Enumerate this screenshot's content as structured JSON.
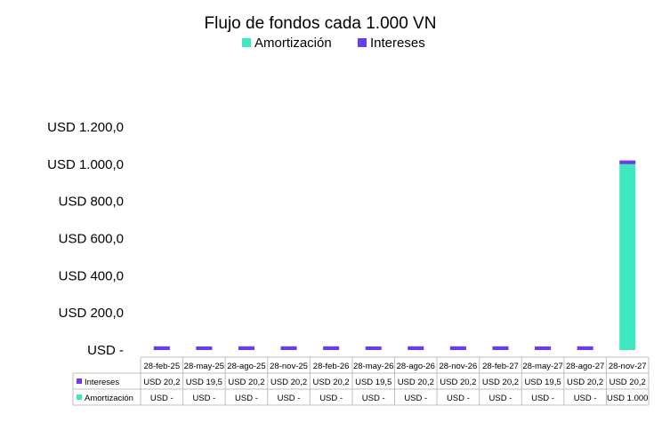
{
  "chart_data": {
    "type": "bar",
    "stacked": true,
    "title": "Flujo de fondos cada 1.000 VN",
    "categories": [
      "28-feb-25",
      "28-may-25",
      "28-ago-25",
      "28-nov-25",
      "28-feb-26",
      "28-may-26",
      "28-ago-26",
      "28-nov-26",
      "28-feb-27",
      "28-may-27",
      "28-ago-27",
      "28-nov-27"
    ],
    "series": [
      {
        "name": "Amortización",
        "color": "#40E8C0",
        "values": [
          0,
          0,
          0,
          0,
          0,
          0,
          0,
          0,
          0,
          0,
          0,
          1000
        ],
        "labels": [
          "USD -",
          "USD -",
          "USD -",
          "USD -",
          "USD -",
          "USD -",
          "USD -",
          "USD -",
          "USD -",
          "USD -",
          "USD -",
          "USD 1.000"
        ]
      },
      {
        "name": "Intereses",
        "color": "#6A3DE8",
        "values": [
          20.2,
          19.5,
          20.2,
          20.2,
          20.2,
          19.5,
          20.2,
          20.2,
          20.2,
          19.5,
          20.2,
          20.2
        ],
        "labels": [
          "USD 20,2",
          "USD 19,5",
          "USD 20,2",
          "USD 20,2",
          "USD 20,2",
          "USD 19,5",
          "USD 20,2",
          "USD 20,2",
          "USD 20,2",
          "USD 19,5",
          "USD 20,2",
          "USD 20,2"
        ]
      }
    ],
    "table_rows": [
      {
        "name": "Intereses",
        "series": 1
      },
      {
        "name": "Amortización",
        "series": 0
      }
    ],
    "yticks": [
      0,
      200,
      400,
      600,
      800,
      1000,
      1200
    ],
    "ytick_labels": [
      "USD -",
      "USD 200,0",
      "USD 400,0",
      "USD 600,0",
      "USD 800,0",
      "USD 1.000,0",
      "USD 1.200,0"
    ],
    "ylim": [
      0,
      1200
    ],
    "legend_position": "top",
    "legend_order": [
      "Amortización",
      "Intereses"
    ],
    "grid": false,
    "data_table": true
  }
}
